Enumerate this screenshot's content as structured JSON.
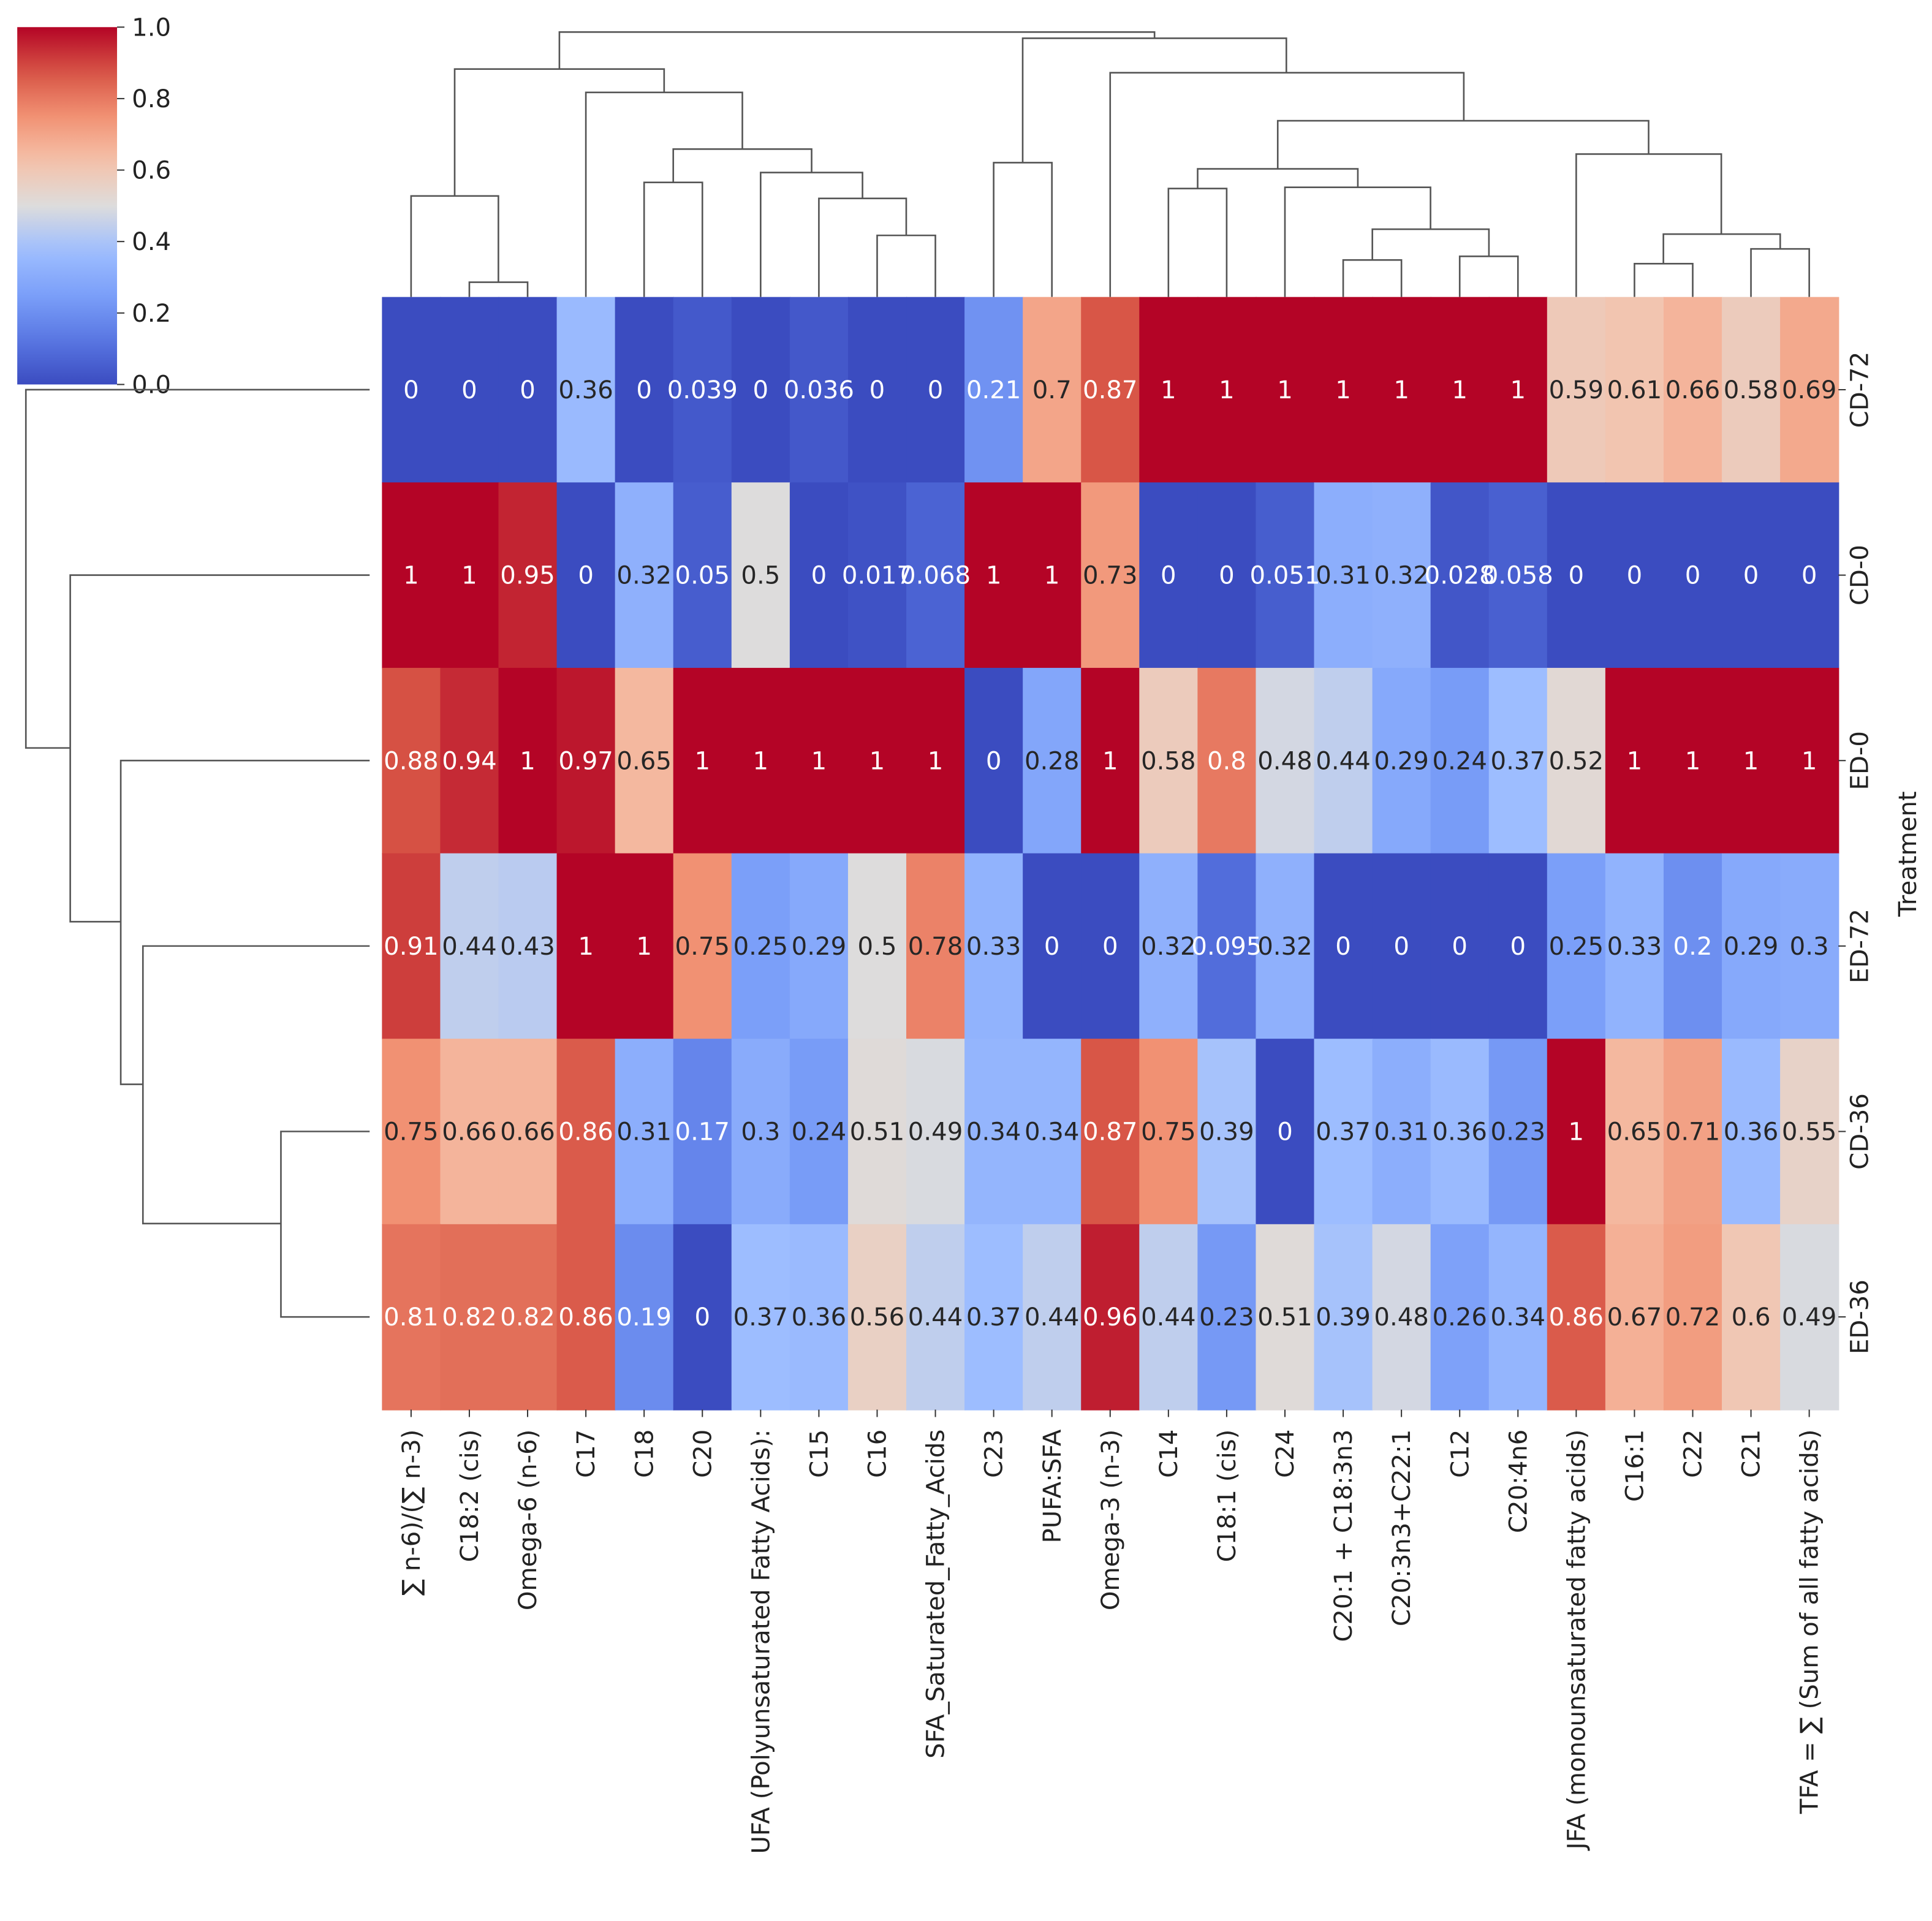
{
  "chart_data": {
    "type": "heatmap",
    "title": "",
    "ylabel": "Treatment",
    "xlabel": "",
    "rows": [
      "CD-72",
      "CD-0",
      "ED-0",
      "ED-72",
      "CD-36",
      "ED-36"
    ],
    "columns": [
      "∑ n-6)/(∑ n-3)",
      "C18:2 (cis)",
      "Omega-6 (n-6)",
      "C17",
      "C18",
      "C20",
      "UFA (Polyunsaturated Fatty Acids):",
      "C15",
      "C16",
      "SFA_Saturated_Fatty_Acids",
      "C23",
      "PUFA:SFA",
      "Omega-3 (n-3)",
      "C14",
      "C18:1 (cis)",
      "C24",
      "C20:1 + C18:3n3",
      "C20:3n3+C22:1",
      "C12",
      "C20:4n6",
      "JFA (monounsaturated fatty acids)",
      "C16:1",
      "C22",
      "C21",
      "TFA = ∑ (Sum of all fatty acids)"
    ],
    "values": [
      [
        0,
        0,
        0,
        0.36,
        0,
        0.039,
        0,
        0.036,
        0,
        0,
        0.21,
        0.7,
        0.87,
        1,
        1,
        1,
        1,
        1,
        1,
        1,
        0.59,
        0.61,
        0.66,
        0.58,
        0.69
      ],
      [
        1,
        1,
        0.95,
        0,
        0.32,
        0.05,
        0.5,
        0,
        0.017,
        0.068,
        1,
        1,
        0.73,
        0,
        0,
        0.051,
        0.31,
        0.32,
        0.028,
        0.058,
        0,
        0,
        0,
        0,
        0
      ],
      [
        0.88,
        0.94,
        1,
        0.97,
        0.65,
        1,
        1,
        1,
        1,
        1,
        0,
        0.28,
        1,
        0.58,
        0.8,
        0.48,
        0.44,
        0.29,
        0.24,
        0.37,
        0.52,
        1,
        1,
        1,
        1
      ],
      [
        0.91,
        0.44,
        0.43,
        1,
        1,
        0.75,
        0.25,
        0.29,
        0.5,
        0.78,
        0.33,
        0,
        0,
        0.32,
        0.095,
        0.32,
        0,
        0,
        0,
        0,
        0.25,
        0.33,
        0.2,
        0.29,
        0.3
      ],
      [
        0.75,
        0.66,
        0.66,
        0.86,
        0.31,
        0.17,
        0.3,
        0.24,
        0.51,
        0.49,
        0.34,
        0.34,
        0.87,
        0.75,
        0.39,
        0,
        0.37,
        0.31,
        0.36,
        0.23,
        1,
        0.65,
        0.71,
        0.36,
        0.55
      ],
      [
        0.81,
        0.82,
        0.82,
        0.86,
        0.19,
        0,
        0.37,
        0.36,
        0.56,
        0.44,
        0.37,
        0.44,
        0.96,
        0.44,
        0.23,
        0.51,
        0.39,
        0.48,
        0.26,
        0.34,
        0.86,
        0.67,
        0.72,
        0.6,
        0.49
      ]
    ],
    "colormap": "coolwarm",
    "colorbar": {
      "range": [
        0,
        1
      ],
      "ticks": [
        "0.0",
        "0.2",
        "0.4",
        "0.6",
        "0.8",
        "1.0"
      ],
      "tick_values": [
        0,
        0.2,
        0.4,
        0.6,
        0.8,
        1.0
      ],
      "placement": "top-left"
    },
    "dendrograms": {
      "rows": true,
      "columns": true
    }
  }
}
